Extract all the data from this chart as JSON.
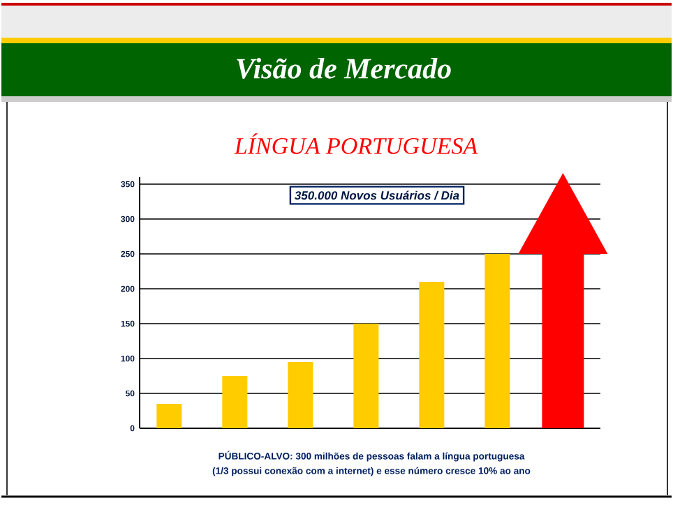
{
  "chart_data": {
    "type": "bar",
    "title": "Visão de Mercado",
    "subtitle": "LÍNGUA PORTUGUESA",
    "annotations": [
      "350.000 Novos Usuários / Dia",
      "PÚBLICO-ALVO: 300 milhões de pessoas falam a língua portuguesa",
      "(1/3 possui conexão com a internet) e esse número cresce 10% ao ano"
    ],
    "categories": [
      null,
      null,
      null,
      null,
      null,
      null,
      null
    ],
    "values": [
      35,
      75,
      95,
      150,
      210,
      250,
      null
    ],
    "color": "#ffcc00",
    "ylim": [
      0,
      360
    ],
    "yticks": [
      0,
      50,
      100,
      150,
      200,
      250,
      300,
      350
    ],
    "grid": "y",
    "tick_labels": "y"
  }
}
